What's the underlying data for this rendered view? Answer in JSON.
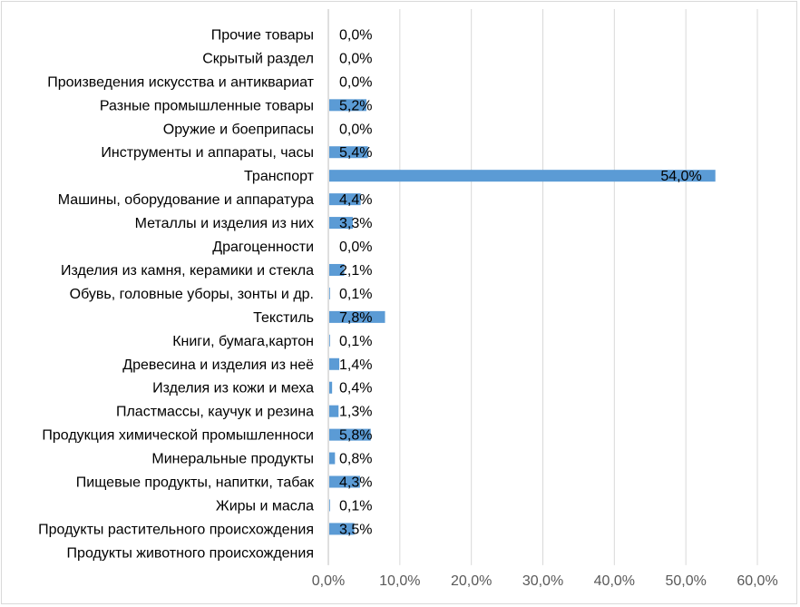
{
  "chart_data": {
    "type": "bar",
    "orientation": "horizontal",
    "title": "",
    "xlabel": "",
    "ylabel": "",
    "categories": [
      "Прочие товары",
      "Скрытый раздел",
      "Произведения искусства и антиквариат",
      "Разные промышленные товары",
      "Оружие и боеприпасы",
      "Инструменты и аппараты, часы",
      "Транспорт",
      "Машины, оборудование и аппаратура",
      "Металлы и изделия из них",
      "Драгоценности",
      "Изделия из камня, керамики и стекла",
      "Обувь, головные уборы, зонты и др.",
      "Текстиль",
      "Книги, бумага,картон",
      "Древесина и изделия из неё",
      "Изделия из кожи и меха",
      "Пластмассы, каучук и резина",
      "Продукция химической промышленноси",
      "Минеральные продукты",
      "Пищевые продукты, напитки, табак",
      "Жиры и масла",
      "Продукты растительного происхождения",
      "Продукты животного происхождения"
    ],
    "values": [
      0.0,
      0.0,
      0.0,
      5.2,
      0.0,
      5.4,
      54.0,
      4.4,
      3.3,
      0.0,
      2.1,
      0.1,
      7.8,
      0.1,
      1.4,
      0.4,
      1.3,
      5.8,
      0.8,
      4.3,
      0.1,
      3.5,
      null
    ],
    "data_labels": [
      "0,0%",
      "0,0%",
      "0,0%",
      "5,2%",
      "0,0%",
      "5,4%",
      "54,0%",
      "4,4%",
      "3,3%",
      "0,0%",
      "2,1%",
      "0,1%",
      "7,8%",
      "0,1%",
      "1,4%",
      "0,4%",
      "1,3%",
      "5,8%",
      "0,8%",
      "4,3%",
      "0,1%",
      "3,5%",
      ""
    ],
    "x_ticks": [
      "0,0%",
      "10,0%",
      "20,0%",
      "30,0%",
      "40,0%",
      "50,0%",
      "60,0%"
    ],
    "xlim": [
      0,
      60
    ],
    "grid": true,
    "legend": "none",
    "colors": {
      "bar": "#5b9bd5",
      "grid": "#d9d9d9",
      "text": "#000000",
      "tick": "#595959"
    }
  }
}
